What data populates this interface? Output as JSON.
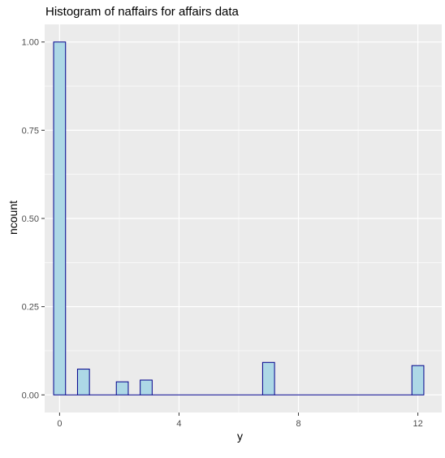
{
  "chart_data": {
    "type": "bar",
    "title": "Histogram of naffairs for affairs data",
    "xlabel": "y",
    "ylabel": "ncount",
    "xlim": [
      -0.5,
      12.8
    ],
    "ylim": [
      -0.05,
      1.05
    ],
    "x_ticks": [
      "0",
      "4",
      "8",
      "12"
    ],
    "y_ticks": [
      "0.00",
      "0.25",
      "0.50",
      "0.75",
      "1.00"
    ],
    "bin_width": 0.4,
    "x": [
      0,
      0.8,
      2.1,
      2.9,
      7.0,
      12.0
    ],
    "values": [
      1.0,
      0.073,
      0.037,
      0.042,
      0.092,
      0.083
    ],
    "grid": true,
    "colors": {
      "fill": "#add8e6",
      "border": "#00008b",
      "panel": "#ebebeb",
      "grid": "#ffffff"
    }
  }
}
